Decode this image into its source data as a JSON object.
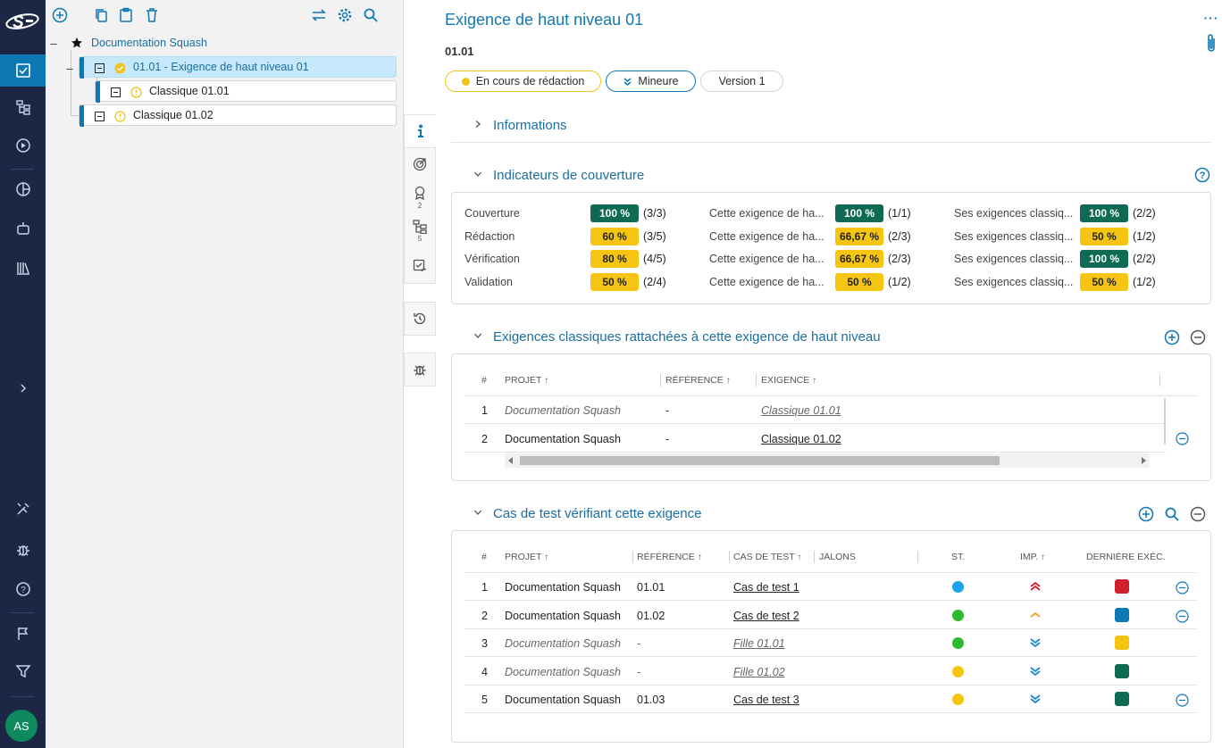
{
  "user": {
    "initials": "AS"
  },
  "tree": {
    "root": "Documentation Squash",
    "nodes": [
      {
        "label": "01.01 - Exigence de haut niveau 01"
      },
      {
        "label": "Classique 01.01"
      },
      {
        "label": "Classique 01.02"
      }
    ]
  },
  "sidetabs": {
    "milestones_count": "2",
    "tree_count": "5"
  },
  "header": {
    "title": "Exigence de haut niveau 01",
    "reference": "01.01",
    "status": "En cours de rédaction",
    "criticality": "Mineure",
    "version": "Version 1"
  },
  "sections": {
    "info": "Informations",
    "coverage": "Indicateurs de couverture",
    "linked": "Exigences classiques rattachées à cette exigence de haut niveau",
    "tests": "Cas de test vérifiant cette exigence"
  },
  "coverage": {
    "rows": [
      {
        "label": "Couverture",
        "v1": "100 %",
        "f1": "(3/3)",
        "l2": "Cette exigence de ha...",
        "v2": "100 %",
        "f2": "(1/1)",
        "l3": "Ses exigences classiq...",
        "v3": "100 %",
        "f3": "(2/2)"
      },
      {
        "label": "Rédaction",
        "v1": "60 %",
        "f1": "(3/5)",
        "l2": "Cette exigence de ha...",
        "v2": "66,67 %",
        "f2": "(2/3)",
        "l3": "Ses exigences classiq...",
        "v3": "50 %",
        "f3": "(1/2)"
      },
      {
        "label": "Vérification",
        "v1": "80 %",
        "f1": "(4/5)",
        "l2": "Cette exigence de ha...",
        "v2": "66,67 %",
        "f2": "(2/3)",
        "l3": "Ses exigences classiq...",
        "v3": "100 %",
        "f3": "(2/2)"
      },
      {
        "label": "Validation",
        "v1": "50 %",
        "f1": "(2/4)",
        "l2": "Cette exigence de ha...",
        "v2": "50 %",
        "f2": "(1/2)",
        "l3": "Ses exigences classiq...",
        "v3": "50 %",
        "f3": "(1/2)"
      }
    ],
    "colors": {
      "green": "#0f6a53",
      "yellow": "#f6c512"
    }
  },
  "linked_table": {
    "headers": {
      "num": "#",
      "project": "PROJET",
      "reference": "RÉFÉRENCE",
      "requirement": "EXIGENCE"
    },
    "rows": [
      {
        "num": "1",
        "project": "Documentation Squash",
        "reference": "-",
        "requirement": "Classique 01.01"
      },
      {
        "num": "2",
        "project": "Documentation Squash",
        "reference": "-",
        "requirement": "Classique 01.02"
      }
    ]
  },
  "tests_table": {
    "headers": {
      "num": "#",
      "project": "PROJET",
      "reference": "RÉFÉRENCE",
      "testcase": "CAS DE TEST",
      "milestones": "JALONS",
      "status": "ST.",
      "importance": "IMP.",
      "last_exec": "DERNIÈRE EXÉC."
    },
    "rows": [
      {
        "num": "1",
        "project": "Documentation Squash",
        "reference": "01.01",
        "testcase": "Cas de test 1",
        "status_color": "#1aa3e8",
        "importance": "high",
        "exec_color": "#d0202e"
      },
      {
        "num": "2",
        "project": "Documentation Squash",
        "reference": "01.02",
        "testcase": "Cas de test 2",
        "status_color": "#2dbb2d",
        "importance": "medium",
        "exec_color": "#0e78b5"
      },
      {
        "num": "3",
        "project": "Documentation Squash",
        "reference": "-",
        "testcase": "Fille 01.01",
        "status_color": "#2dbb2d",
        "importance": "low",
        "exec_color": "#f6c512"
      },
      {
        "num": "4",
        "project": "Documentation Squash",
        "reference": "-",
        "testcase": "Fille 01.02",
        "status_color": "#f6c512",
        "importance": "low",
        "exec_color": "#0f6a53"
      },
      {
        "num": "5",
        "project": "Documentation Squash",
        "reference": "01.03",
        "testcase": "Cas de test 3",
        "status_color": "#f6c512",
        "importance": "low",
        "exec_color": "#0f6a53"
      }
    ]
  }
}
